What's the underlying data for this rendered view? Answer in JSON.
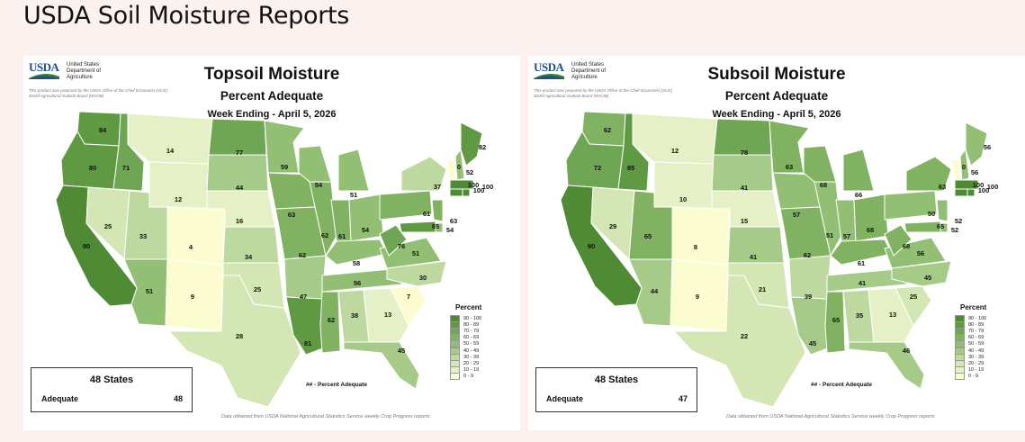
{
  "page": {
    "title": "USDA Soil Moisture Reports"
  },
  "logo": {
    "text": "USDA",
    "department": "United States Department of Agriculture",
    "note": "This product was prepared by the USDA Office of the Chief Economist (OCE) World Agricultural Outlook Board (WAOB)"
  },
  "legend": {
    "title": "Percent",
    "colors": [
      "#4f8a35",
      "#5f9a43",
      "#6fa653",
      "#80b262",
      "#92bf74",
      "#a6cb88",
      "#bdd99f",
      "#d3e6b4",
      "#e6f0c6",
      "#fbfccf"
    ],
    "ranges": [
      "90 - 100",
      "80 - 89",
      "70 - 79",
      "60 - 69",
      "50 - 59",
      "40 - 49",
      "30 - 39",
      "20 - 29",
      "10 - 19",
      "0 - 9"
    ]
  },
  "maps": [
    {
      "title": "Topsoil Moisture",
      "subtitle": "Percent Adequate",
      "week": "Week Ending - April 5, 2026",
      "summary_header": "48 States",
      "summary_label": "Adequate",
      "summary_value": "48",
      "key_note": "## - Percent Adequate",
      "source": "Data obtained from USDA National Agricultural Statistics Service weekly Crop Progress reports.",
      "states": {
        "WA": 84,
        "OR": 80,
        "CA": 90,
        "ID": 71,
        "NV": 25,
        "MT": 14,
        "WY": 12,
        "UT": 33,
        "AZ": 51,
        "CO": 4,
        "NM": 9,
        "ND": 77,
        "SD": 44,
        "NE": 16,
        "KS": 34,
        "OK": 25,
        "TX": 28,
        "MN": 59,
        "IA": 63,
        "MO": 62,
        "AR": 47,
        "LA": 81,
        "WI": 54,
        "IL": 62,
        "MI": 51,
        "IN": 61,
        "OH": 54,
        "KY": 58,
        "TN": 56,
        "MS": 62,
        "AL": 38,
        "GA": 13,
        "FL": 45,
        "SC": 7,
        "NC": 30,
        "VA": 51,
        "WV": 76,
        "PA": 61,
        "NY": 37,
        "VT": 0,
        "NH": 52,
        "ME": 82,
        "MA": 100,
        "CT": 100,
        "NJ": 63,
        "DE": 54,
        "MD": 85,
        "RI": 100
      }
    },
    {
      "title": "Subsoil Moisture",
      "subtitle": "Percent Adequate",
      "week": "Week Ending - April 5, 2026",
      "summary_header": "48 States",
      "summary_label": "Adequate",
      "summary_value": "47",
      "key_note": "## - Percent Adequate",
      "source": "Data obtained from USDA National Agricultural Statistics Service weekly Crop Progress reports.",
      "states": {
        "WA": 62,
        "OR": 72,
        "CA": 90,
        "ID": 85,
        "NV": 29,
        "MT": 12,
        "WY": 10,
        "UT": 65,
        "AZ": 44,
        "CO": 8,
        "NM": 9,
        "ND": 78,
        "SD": 41,
        "NE": 15,
        "KS": 41,
        "OK": 21,
        "TX": 22,
        "MN": 63,
        "IA": 57,
        "MO": 62,
        "AR": 39,
        "LA": 45,
        "WI": 68,
        "IL": 51,
        "MI": 66,
        "IN": 57,
        "OH": 68,
        "KY": 61,
        "TN": 41,
        "MS": 65,
        "AL": 35,
        "GA": 13,
        "FL": 46,
        "SC": 25,
        "NC": 45,
        "VA": 56,
        "WV": 68,
        "PA": 50,
        "NY": 63,
        "VT": 0,
        "NH": 56,
        "ME": 56,
        "MA": 100,
        "CT": 100,
        "NJ": 52,
        "DE": 52,
        "MD": 65,
        "RI": 100
      }
    }
  ]
}
